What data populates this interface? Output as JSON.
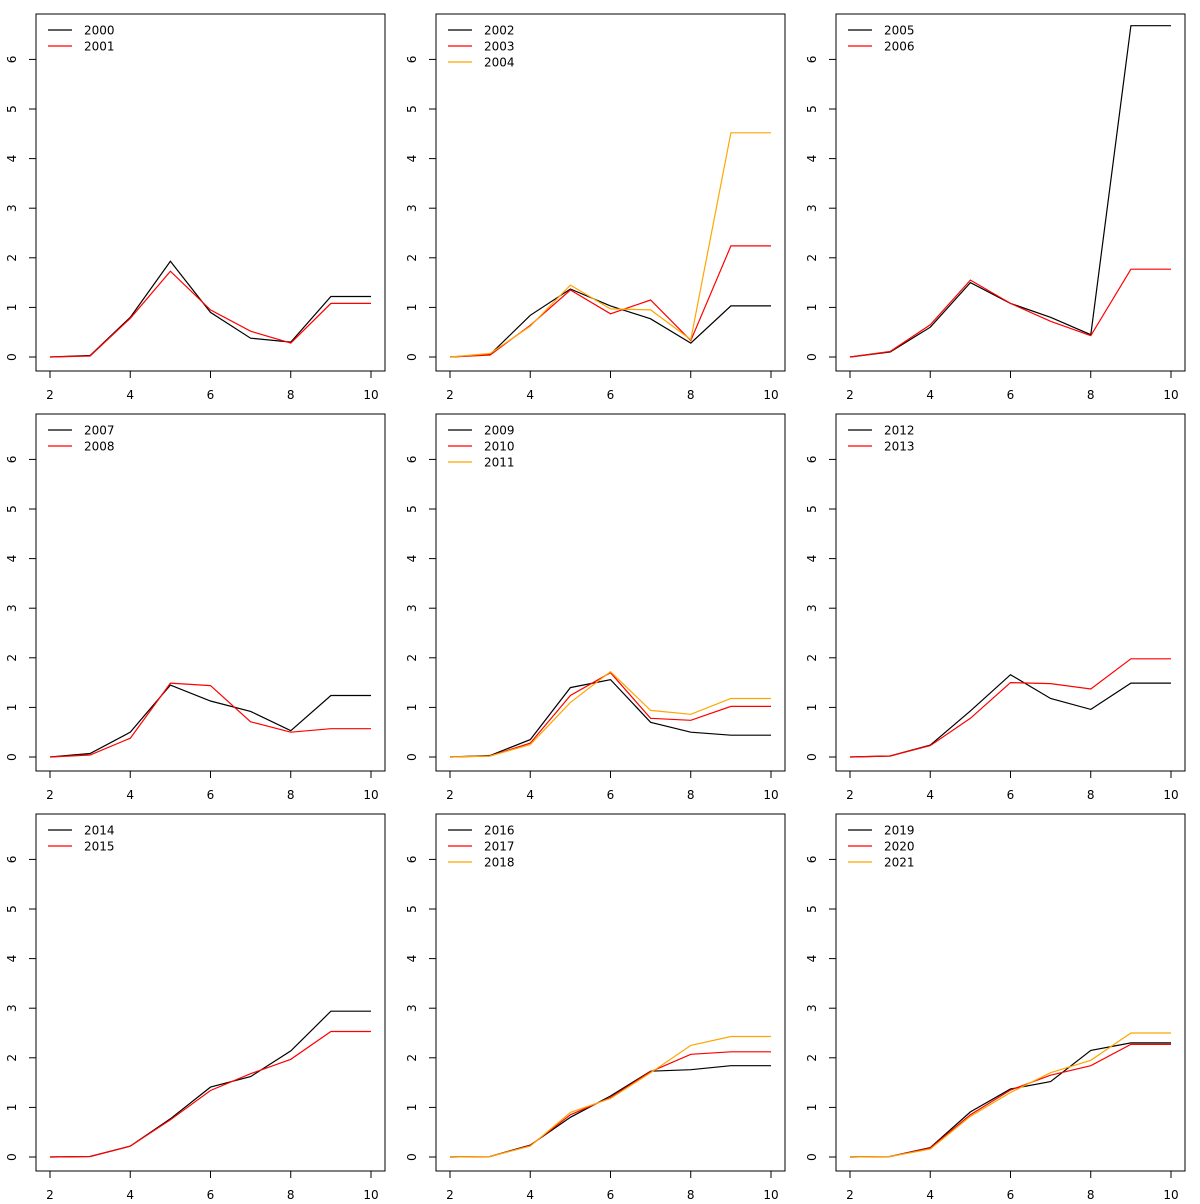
{
  "chart_data": [
    {
      "type": "line",
      "x": [
        2,
        3,
        4,
        5,
        6,
        7,
        8,
        9,
        10
      ],
      "xlim": [
        2,
        10
      ],
      "ylim": [
        0,
        6.7
      ],
      "xticks": [
        "2",
        "4",
        "6",
        "8",
        "10"
      ],
      "yticks": [
        "0",
        "1",
        "2",
        "3",
        "4",
        "5",
        "6"
      ],
      "legend_position": "top-left",
      "series": [
        {
          "name": "2000",
          "color": "#000000",
          "values": [
            0,
            0.03,
            0.8,
            1.93,
            0.9,
            0.38,
            0.3,
            1.22,
            1.22
          ]
        },
        {
          "name": "2001",
          "color": "#ff0000",
          "values": [
            0,
            0.02,
            0.78,
            1.73,
            0.95,
            0.52,
            0.28,
            1.08,
            1.08
          ]
        }
      ]
    },
    {
      "type": "line",
      "x": [
        2,
        3,
        4,
        5,
        6,
        7,
        8,
        9,
        10
      ],
      "xlim": [
        2,
        10
      ],
      "ylim": [
        0,
        6.7
      ],
      "xticks": [
        "2",
        "4",
        "6",
        "8",
        "10"
      ],
      "yticks": [
        "0",
        "1",
        "2",
        "3",
        "4",
        "5",
        "6"
      ],
      "legend_position": "top-left",
      "series": [
        {
          "name": "2002",
          "color": "#000000",
          "values": [
            0,
            0.05,
            0.84,
            1.37,
            1.03,
            0.77,
            0.28,
            1.03,
            1.03
          ]
        },
        {
          "name": "2003",
          "color": "#ff0000",
          "values": [
            0,
            0.04,
            0.64,
            1.35,
            0.87,
            1.15,
            0.33,
            2.24,
            2.24
          ]
        },
        {
          "name": "2004",
          "color": "#ffa500",
          "values": [
            0,
            0.07,
            0.62,
            1.45,
            0.97,
            0.95,
            0.35,
            4.52,
            4.52
          ]
        }
      ]
    },
    {
      "type": "line",
      "x": [
        2,
        3,
        4,
        5,
        6,
        7,
        8,
        9,
        10
      ],
      "xlim": [
        2,
        10
      ],
      "ylim": [
        0,
        6.7
      ],
      "xticks": [
        "2",
        "4",
        "6",
        "8",
        "10"
      ],
      "yticks": [
        "0",
        "1",
        "2",
        "3",
        "4",
        "5",
        "6"
      ],
      "legend_position": "top-left",
      "series": [
        {
          "name": "2005",
          "color": "#000000",
          "values": [
            0,
            0.1,
            0.6,
            1.5,
            1.08,
            0.8,
            0.45,
            6.68,
            6.68
          ]
        },
        {
          "name": "2006",
          "color": "#ff0000",
          "values": [
            0,
            0.11,
            0.65,
            1.55,
            1.08,
            0.72,
            0.43,
            1.77,
            1.77
          ]
        }
      ]
    },
    {
      "type": "line",
      "x": [
        2,
        3,
        4,
        5,
        6,
        7,
        8,
        9,
        10
      ],
      "xlim": [
        2,
        10
      ],
      "ylim": [
        0,
        6.7
      ],
      "xticks": [
        "2",
        "4",
        "6",
        "8",
        "10"
      ],
      "yticks": [
        "0",
        "1",
        "2",
        "3",
        "4",
        "5",
        "6"
      ],
      "legend_position": "top-left",
      "series": [
        {
          "name": "2007",
          "color": "#000000",
          "values": [
            0,
            0.07,
            0.5,
            1.45,
            1.13,
            0.92,
            0.53,
            1.24,
            1.24
          ]
        },
        {
          "name": "2008",
          "color": "#ff0000",
          "values": [
            0,
            0.04,
            0.38,
            1.49,
            1.44,
            0.71,
            0.5,
            0.57,
            0.57
          ]
        }
      ]
    },
    {
      "type": "line",
      "x": [
        2,
        3,
        4,
        5,
        6,
        7,
        8,
        9,
        10
      ],
      "xlim": [
        2,
        10
      ],
      "ylim": [
        0,
        6.7
      ],
      "xticks": [
        "2",
        "4",
        "6",
        "8",
        "10"
      ],
      "yticks": [
        "0",
        "1",
        "2",
        "3",
        "4",
        "5",
        "6"
      ],
      "legend_position": "top-left",
      "series": [
        {
          "name": "2009",
          "color": "#000000",
          "values": [
            0,
            0.03,
            0.35,
            1.4,
            1.56,
            0.7,
            0.5,
            0.44,
            0.44
          ]
        },
        {
          "name": "2010",
          "color": "#ff0000",
          "values": [
            0,
            0.02,
            0.28,
            1.24,
            1.7,
            0.78,
            0.74,
            1.02,
            1.02
          ]
        },
        {
          "name": "2011",
          "color": "#ffa500",
          "values": [
            0,
            0.02,
            0.25,
            1.1,
            1.72,
            0.94,
            0.86,
            1.18,
            1.18
          ]
        }
      ]
    },
    {
      "type": "line",
      "x": [
        2,
        3,
        4,
        5,
        6,
        7,
        8,
        9,
        10
      ],
      "xlim": [
        2,
        10
      ],
      "ylim": [
        0,
        6.7
      ],
      "xticks": [
        "2",
        "4",
        "6",
        "8",
        "10"
      ],
      "yticks": [
        "0",
        "1",
        "2",
        "3",
        "4",
        "5",
        "6"
      ],
      "legend_position": "top-left",
      "series": [
        {
          "name": "2012",
          "color": "#000000",
          "values": [
            0,
            0.02,
            0.24,
            0.93,
            1.66,
            1.18,
            0.96,
            1.49,
            1.49
          ]
        },
        {
          "name": "2013",
          "color": "#ff0000",
          "values": [
            0,
            0.02,
            0.23,
            0.78,
            1.5,
            1.48,
            1.37,
            1.98,
            1.98
          ]
        }
      ]
    },
    {
      "type": "line",
      "x": [
        2,
        3,
        4,
        5,
        6,
        7,
        8,
        9,
        10
      ],
      "xlim": [
        2,
        10
      ],
      "ylim": [
        0,
        6.7
      ],
      "xticks": [
        "2",
        "4",
        "6",
        "8",
        "10"
      ],
      "yticks": [
        "0",
        "1",
        "2",
        "3",
        "4",
        "5",
        "6"
      ],
      "legend_position": "top-left",
      "series": [
        {
          "name": "2014",
          "color": "#000000",
          "values": [
            0,
            0.01,
            0.22,
            0.77,
            1.41,
            1.62,
            2.14,
            2.94,
            2.94
          ]
        },
        {
          "name": "2015",
          "color": "#ff0000",
          "values": [
            0,
            0.01,
            0.22,
            0.75,
            1.34,
            1.68,
            1.97,
            2.53,
            2.53
          ]
        }
      ]
    },
    {
      "type": "line",
      "x": [
        2,
        3,
        4,
        5,
        6,
        7,
        8,
        9,
        10
      ],
      "xlim": [
        2,
        10
      ],
      "ylim": [
        0,
        6.7
      ],
      "xticks": [
        "2",
        "4",
        "6",
        "8",
        "10"
      ],
      "yticks": [
        "0",
        "1",
        "2",
        "3",
        "4",
        "5",
        "6"
      ],
      "legend_position": "top-left",
      "series": [
        {
          "name": "2016",
          "color": "#000000",
          "values": [
            0,
            0.01,
            0.24,
            0.8,
            1.23,
            1.73,
            1.76,
            1.84,
            1.84
          ]
        },
        {
          "name": "2017",
          "color": "#ff0000",
          "values": [
            0,
            0.01,
            0.23,
            0.85,
            1.2,
            1.72,
            2.07,
            2.12,
            2.12
          ]
        },
        {
          "name": "2018",
          "color": "#ffa500",
          "values": [
            0,
            0.01,
            0.22,
            0.9,
            1.18,
            1.7,
            2.25,
            2.43,
            2.43
          ]
        }
      ]
    },
    {
      "type": "line",
      "x": [
        2,
        3,
        4,
        5,
        6,
        7,
        8,
        9,
        10
      ],
      "xlim": [
        2,
        10
      ],
      "ylim": [
        0,
        6.7
      ],
      "xticks": [
        "2",
        "4",
        "6",
        "8",
        "10"
      ],
      "yticks": [
        "0",
        "1",
        "2",
        "3",
        "4",
        "5",
        "6"
      ],
      "legend_position": "top-left",
      "series": [
        {
          "name": "2019",
          "color": "#000000",
          "values": [
            0,
            0.01,
            0.19,
            0.91,
            1.37,
            1.52,
            2.15,
            2.3,
            2.3
          ]
        },
        {
          "name": "2020",
          "color": "#ff0000",
          "values": [
            0,
            0.01,
            0.18,
            0.85,
            1.35,
            1.65,
            1.84,
            2.27,
            2.27
          ]
        },
        {
          "name": "2021",
          "color": "#ffa500",
          "values": [
            0,
            0.01,
            0.16,
            0.82,
            1.3,
            1.7,
            1.95,
            2.5,
            2.5
          ]
        }
      ]
    }
  ]
}
